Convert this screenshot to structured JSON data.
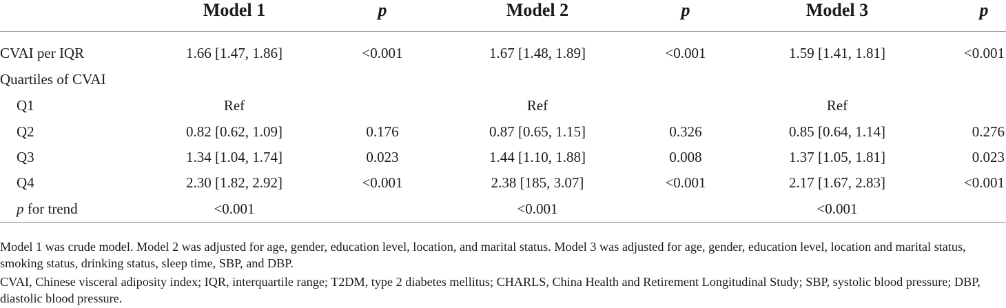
{
  "header": {
    "model1": "Model 1",
    "p1": "p",
    "model2": "Model 2",
    "p2": "p",
    "model3": "Model 3",
    "p3": "p"
  },
  "rows": [
    {
      "label": "CVAI per IQR",
      "m1": "1.66 [1.47, 1.86]",
      "p1": "<0.001",
      "m2": "1.67 [1.48, 1.89]",
      "p2": "<0.001",
      "m3": "1.59 [1.41, 1.81]",
      "p3": "<0.001"
    },
    {
      "label": "Quartiles of CVAI",
      "m1": "",
      "p1": "",
      "m2": "",
      "p2": "",
      "m3": "",
      "p3": ""
    },
    {
      "label": "Q1",
      "m1": "Ref",
      "p1": "",
      "m2": "Ref",
      "p2": "",
      "m3": "Ref",
      "p3": ""
    },
    {
      "label": "Q2",
      "m1": "0.82 [0.62, 1.09]",
      "p1": "0.176",
      "m2": "0.87 [0.65, 1.15]",
      "p2": "0.326",
      "m3": "0.85 [0.64, 1.14]",
      "p3": "0.276"
    },
    {
      "label": "Q3",
      "m1": "1.34 [1.04, 1.74]",
      "p1": "0.023",
      "m2": "1.44 [1.10, 1.88]",
      "p2": "0.008",
      "m3": "1.37 [1.05, 1.81]",
      "p3": "0.023"
    },
    {
      "label": "Q4",
      "m1": "2.30 [1.82, 2.92]",
      "p1": "<0.001",
      "m2": "2.38 [185, 3.07]",
      "p2": "<0.001",
      "m3": "2.17 [1.67, 2.83]",
      "p3": "<0.001"
    },
    {
      "label_italic": "p",
      "label_rest": " for trend",
      "m1": "<0.001",
      "p1": "",
      "m2": "<0.001",
      "p2": "",
      "m3": "<0.001",
      "p3": ""
    }
  ],
  "footnotes": {
    "models": "Model 1 was crude model. Model 2 was adjusted for age, gender, education level, location, and marital status. Model 3 was adjusted for age, gender, education level, location and marital status, smoking status, drinking status, sleep time, SBP, and DBP.",
    "abbreviations": "CVAI, Chinese visceral adiposity index; IQR, interquartile range; T2DM, type 2 diabetes mellitus; CHARLS, China Health and Retirement Longitudinal Study; SBP, systolic blood pressure; DBP, diastolic blood pressure."
  }
}
